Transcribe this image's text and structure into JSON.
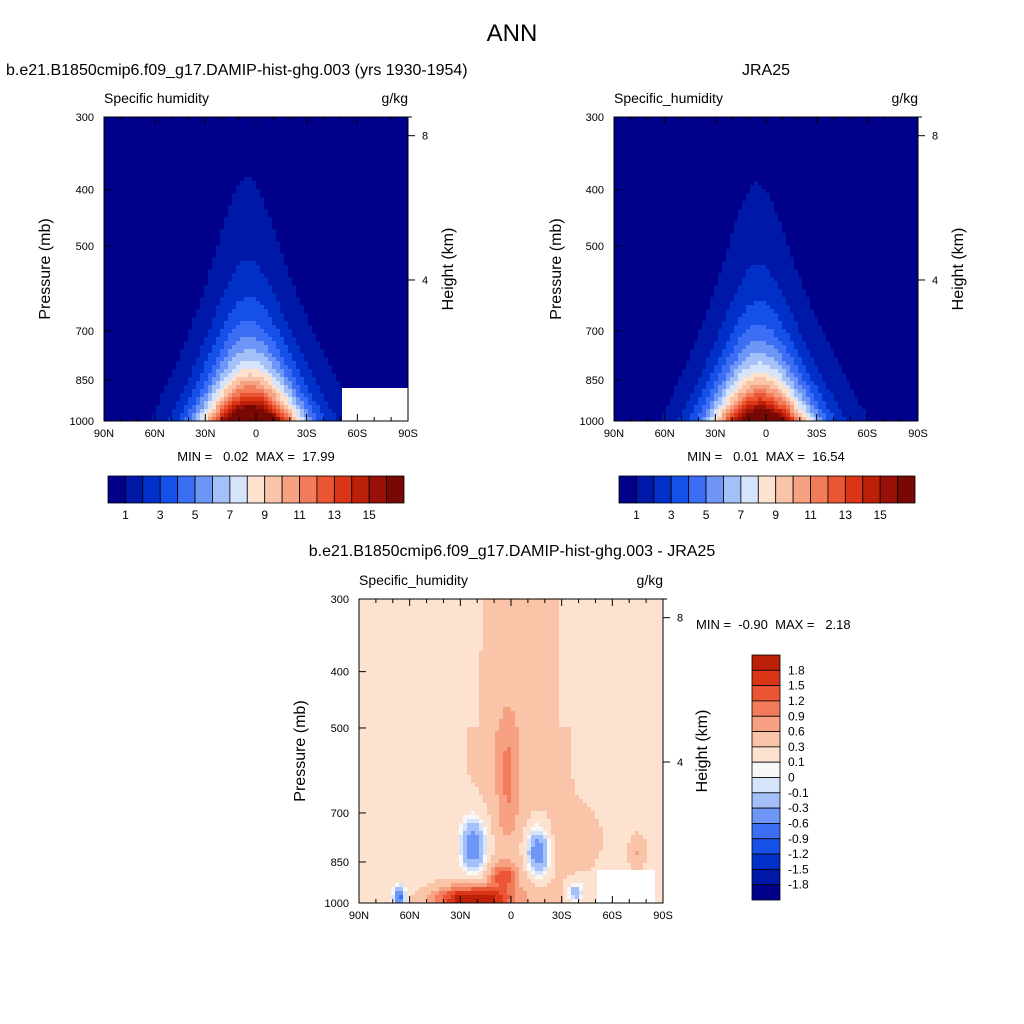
{
  "figure": {
    "title": "ANN"
  },
  "panels": [
    {
      "id": "model",
      "case_title": "b.e21.B1850cmip6.f09_g17.DAMIP-hist-ghg.003 (yrs 1930-1954)",
      "left_label": "Specific humidity",
      "right_label": "g/kg",
      "ylabel": "Pressure (mb)",
      "ylabel_right": "Height (km)",
      "min_max_text": "MIN =   0.02  MAX =  17.99"
    },
    {
      "id": "obs",
      "case_title": "JRA25",
      "left_label": "Specific_humidity",
      "right_label": "g/kg",
      "ylabel": "Pressure (mb)",
      "ylabel_right": "Height (km)",
      "min_max_text": "MIN =   0.01  MAX =  16.54"
    },
    {
      "id": "diff",
      "case_title": "b.e21.B1850cmip6.f09_g17.DAMIP-hist-ghg.003 - JRA25",
      "left_label": "Specific_humidity",
      "right_label": "g/kg",
      "ylabel": "Pressure (mb)",
      "ylabel_right": "Height (km)",
      "min_max_text": "MIN =  -0.90  MAX =   2.18"
    }
  ],
  "chart_data": [
    {
      "type": "heatmap",
      "subtype": "filled-contour",
      "title": "b.e21.B1850cmip6.f09_g17.DAMIP-hist-ghg.003 (yrs 1930-1954)",
      "variable": "Specific humidity",
      "units": "g/kg",
      "xlabel": "",
      "ylabel": "Pressure (mb)",
      "ylabel_right": "Height (km)",
      "x_ticks": [
        "90N",
        "60N",
        "30N",
        "0",
        "30S",
        "60S",
        "90S"
      ],
      "x_tick_values": [
        90,
        60,
        30,
        0,
        -30,
        -60,
        -90
      ],
      "y_ticks": [
        300,
        400,
        500,
        700,
        850,
        1000
      ],
      "y_right_ticks": [
        8,
        4
      ],
      "levels": [
        1,
        2,
        3,
        4,
        5,
        6,
        7,
        8,
        9,
        10,
        11,
        12,
        13,
        14,
        15,
        16
      ],
      "colorbar_labels": [
        "1",
        "3",
        "5",
        "7",
        "9",
        "11",
        "13",
        "15"
      ],
      "colors": [
        "#00008b",
        "#0018a8",
        "#0030c8",
        "#1550e8",
        "#3b6ef4",
        "#6e96f6",
        "#a4c0f8",
        "#d6e4fb",
        "#fde2cf",
        "#fac4a8",
        "#f6a182",
        "#f27c5a",
        "#ea5533",
        "#db3518",
        "#bc2008",
        "#981006",
        "#780804"
      ],
      "min": 0.02,
      "max": 17.99
    },
    {
      "type": "heatmap",
      "subtype": "filled-contour",
      "title": "JRA25",
      "variable": "Specific_humidity",
      "units": "g/kg",
      "xlabel": "",
      "ylabel": "Pressure (mb)",
      "ylabel_right": "Height (km)",
      "x_ticks": [
        "90N",
        "60N",
        "30N",
        "0",
        "30S",
        "60S",
        "90S"
      ],
      "x_tick_values": [
        90,
        60,
        30,
        0,
        -30,
        -60,
        -90
      ],
      "y_ticks": [
        300,
        400,
        500,
        700,
        850,
        1000
      ],
      "y_right_ticks": [
        8,
        4
      ],
      "levels": [
        1,
        2,
        3,
        4,
        5,
        6,
        7,
        8,
        9,
        10,
        11,
        12,
        13,
        14,
        15,
        16
      ],
      "colorbar_labels": [
        "1",
        "3",
        "5",
        "7",
        "9",
        "11",
        "13",
        "15"
      ],
      "colors": [
        "#00008b",
        "#0018a8",
        "#0030c8",
        "#1550e8",
        "#3b6ef4",
        "#6e96f6",
        "#a4c0f8",
        "#d6e4fb",
        "#fde2cf",
        "#fac4a8",
        "#f6a182",
        "#f27c5a",
        "#ea5533",
        "#db3518",
        "#bc2008",
        "#981006",
        "#780804"
      ],
      "min": 0.01,
      "max": 16.54
    },
    {
      "type": "heatmap",
      "subtype": "filled-contour",
      "title": "b.e21.B1850cmip6.f09_g17.DAMIP-hist-ghg.003 - JRA25",
      "variable": "Specific_humidity",
      "units": "g/kg",
      "xlabel": "",
      "ylabel": "Pressure (mb)",
      "ylabel_right": "Height (km)",
      "x_ticks": [
        "90N",
        "60N",
        "30N",
        "0",
        "30S",
        "60S",
        "90S"
      ],
      "x_tick_values": [
        90,
        60,
        30,
        0,
        -30,
        -60,
        -90
      ],
      "y_ticks": [
        300,
        400,
        500,
        700,
        850,
        1000
      ],
      "y_right_ticks": [
        8,
        4
      ],
      "levels": [
        -1.8,
        -1.5,
        -1.2,
        -0.9,
        -0.6,
        -0.3,
        -0.1,
        0,
        0.1,
        0.3,
        0.6,
        0.9,
        1.2,
        1.5,
        1.8
      ],
      "colorbar_labels": [
        "1.8",
        "1.5",
        "1.2",
        "0.9",
        "0.6",
        "0.3",
        "0.1",
        "0",
        "-0.1",
        "-0.3",
        "-0.6",
        "-0.9",
        "-1.2",
        "-1.5",
        "-1.8"
      ],
      "colors": [
        "#00008b",
        "#0018a8",
        "#0030c8",
        "#1550e8",
        "#3b6ef4",
        "#6e96f6",
        "#a4c0f8",
        "#d6e4fb",
        "#f7f7f7",
        "#fde2cf",
        "#fac4a8",
        "#f6a182",
        "#f27c5a",
        "#ea5533",
        "#db3518",
        "#bc2008",
        "#981006"
      ],
      "min": -0.9,
      "max": 2.18
    }
  ]
}
